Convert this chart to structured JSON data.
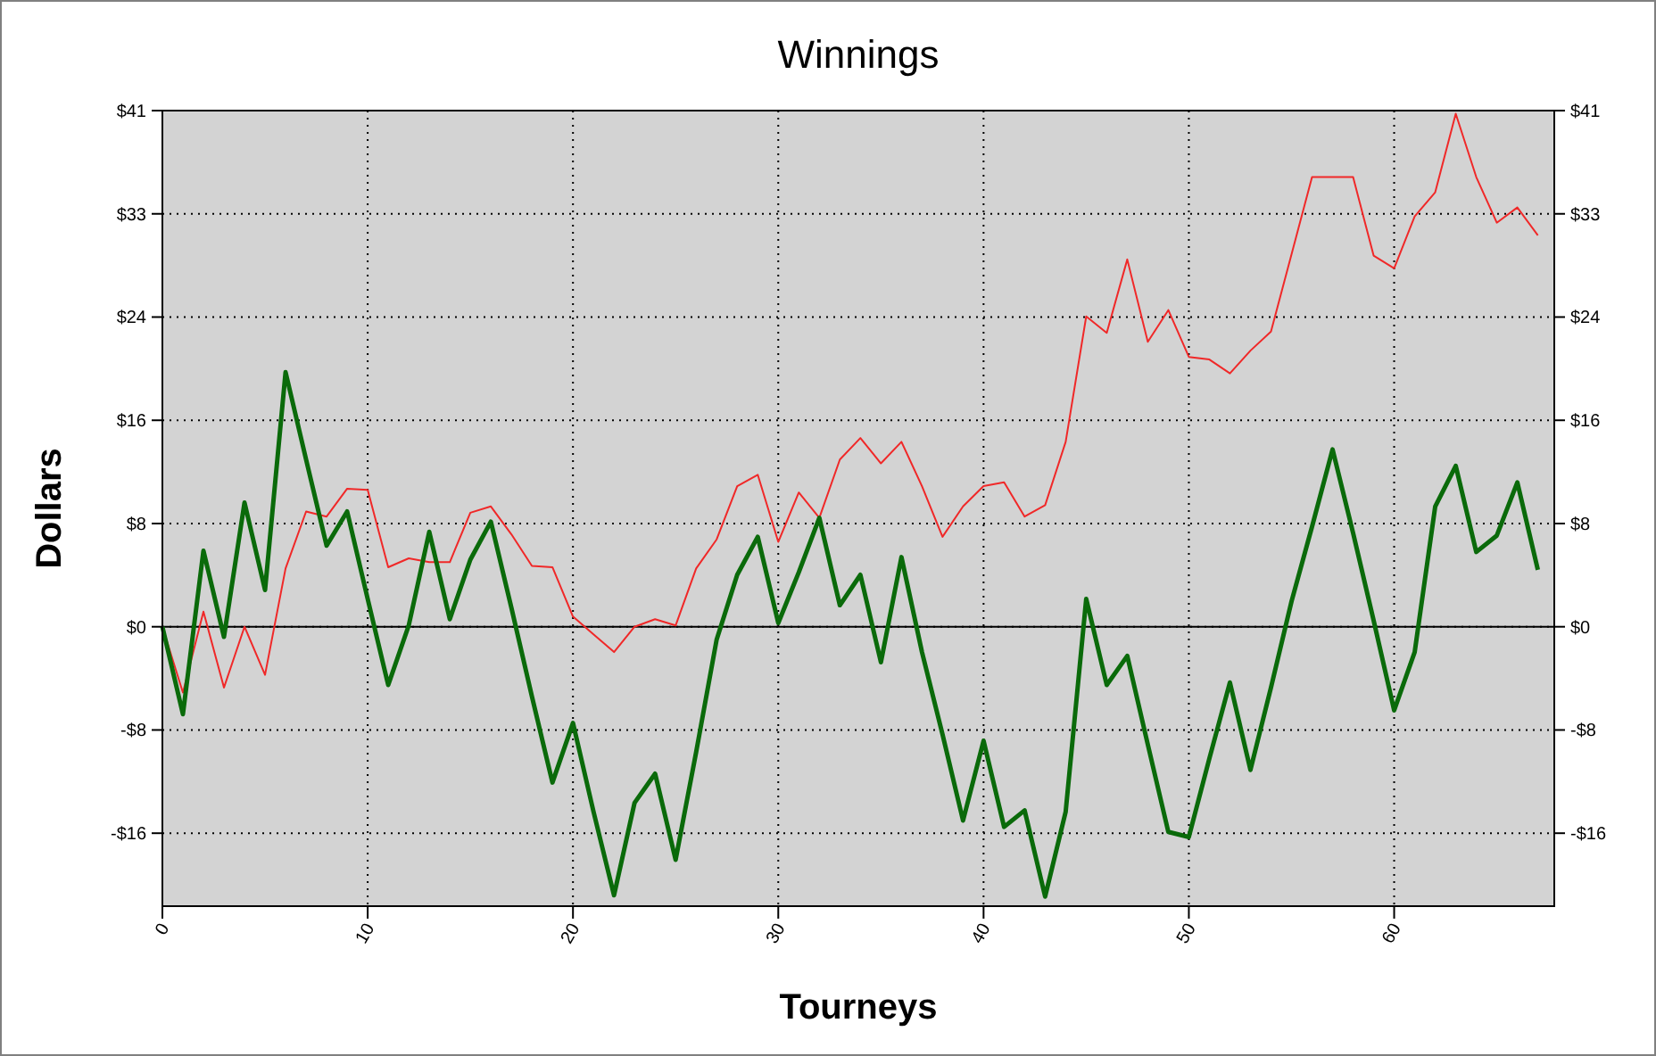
{
  "chart_data": {
    "type": "line",
    "title": "Winnings",
    "xlabel": "Tourneys",
    "ylabel": "Dollars",
    "x": [
      0,
      1,
      2,
      3,
      4,
      5,
      6,
      7,
      8,
      9,
      10,
      11,
      12,
      13,
      14,
      15,
      16,
      17,
      18,
      19,
      20,
      21,
      22,
      23,
      24,
      25,
      26,
      27,
      28,
      29,
      30,
      31,
      32,
      33,
      34,
      35,
      36,
      37,
      38,
      39,
      40,
      41,
      42,
      43,
      44,
      45,
      46,
      47,
      48,
      49,
      50,
      51,
      52,
      53,
      54,
      55,
      56,
      57,
      58,
      59,
      60,
      61,
      62,
      63,
      64,
      65,
      66,
      67
    ],
    "series": [
      {
        "color": "#f02828",
        "values": [
          0,
          -5.2,
          1.2,
          -4.8,
          0,
          -3.8,
          4.6,
          9.1,
          8.7,
          10.9,
          10.8,
          4.7,
          5.4,
          5.1,
          5.1,
          9.0,
          9.5,
          7.3,
          4.8,
          4.7,
          0.8,
          -0.6,
          -2.0,
          0,
          0.6,
          0.1,
          4.6,
          6.9,
          11.1,
          12.0,
          6.7,
          10.6,
          8.6,
          13.2,
          14.9,
          12.9,
          14.6,
          11.1,
          7.1,
          9.5,
          11.1,
          11.4,
          8.7,
          9.6,
          14.6,
          24.5,
          23.2,
          29.0,
          22.5,
          25.0,
          21.3,
          21.1,
          20.0,
          21.8,
          23.3,
          29.4,
          35.5,
          35.5,
          35.5,
          29.3,
          28.3,
          32.4,
          34.3,
          40.5,
          35.5,
          31.9,
          33.1,
          30.9
        ]
      },
      {
        "color": "#0a6a0a",
        "values": [
          0,
          -6.9,
          6.0,
          -0.8,
          9.8,
          2.9,
          20.1,
          13.2,
          6.4,
          9.1,
          2.2,
          -4.6,
          0.1,
          7.5,
          0.6,
          5.3,
          8.3,
          1.5,
          -5.5,
          -12.3,
          -7.6,
          -14.6,
          -21.2,
          -13.9,
          -11.6,
          -18.4,
          -9.9,
          -1.0,
          4.1,
          7.1,
          0.3,
          4.3,
          8.6,
          1.7,
          4.1,
          -2.8,
          5.5,
          -2.0,
          -8.5,
          -15.3,
          -9.0,
          -15.8,
          -14.5,
          -21.3,
          -14.6,
          2.2,
          -4.6,
          -2.3,
          -9.3,
          -16.2,
          -16.6,
          -10.4,
          -4.4,
          -11.3,
          -4.8,
          2.0,
          7.9,
          14.0,
          7.4,
          0.5,
          -6.6,
          -2.0,
          9.5,
          12.7,
          5.9,
          7.2,
          11.4,
          4.5
        ]
      }
    ],
    "xlim": [
      0,
      67.8
    ],
    "xticks": [
      0,
      10,
      20,
      30,
      40,
      50,
      60
    ],
    "ylim": [
      -22.06,
      40.75
    ],
    "yticks": [
      {
        "value": -16.3,
        "label": "-$16"
      },
      {
        "value": -8.15,
        "label": "-$8"
      },
      {
        "value": 0,
        "label": "$0"
      },
      {
        "value": 8.15,
        "label": "$8"
      },
      {
        "value": 16.3,
        "label": "$16"
      },
      {
        "value": 24.45,
        "label": "$24"
      },
      {
        "value": 32.6,
        "label": "$33"
      },
      {
        "value": 40.75,
        "label": "$41"
      }
    ],
    "y2lim": [
      -22.06,
      40.75
    ],
    "y2ticks": [
      {
        "value": -16.3,
        "label": "-$16"
      },
      {
        "value": -8.15,
        "label": "-$8"
      },
      {
        "value": 0,
        "label": "$0"
      },
      {
        "value": 8.15,
        "label": "$8"
      },
      {
        "value": 16.3,
        "label": "$16"
      },
      {
        "value": 24.45,
        "label": "$24"
      },
      {
        "value": 32.6,
        "label": "$33"
      },
      {
        "value": 40.75,
        "label": "$41"
      }
    ],
    "ref_lines": [
      {
        "axis": "y",
        "value": 0,
        "color": "#000000"
      }
    ],
    "grid": true,
    "marker": "none",
    "line_style": "solid"
  }
}
